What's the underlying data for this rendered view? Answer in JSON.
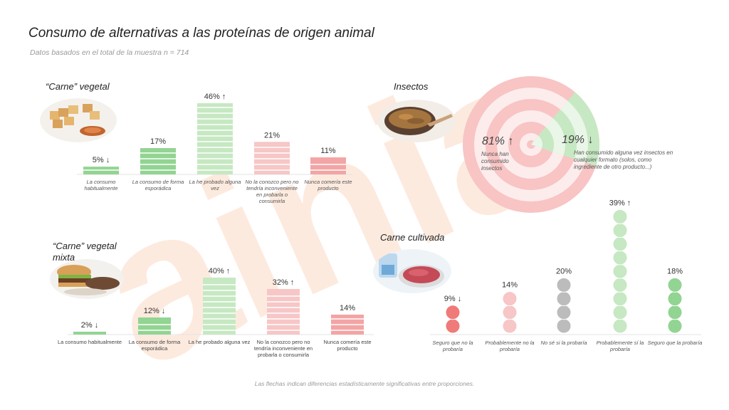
{
  "title": "Consumo de alternativas a las proteínas de origen animal",
  "subtitle": "Datos basados en el total de la muestra n = 714",
  "footnote": "Las flechas indican diferencias estadísticamente significativas entre proporciones.",
  "watermark": "ainia",
  "colors": {
    "green": "#92d492",
    "green_light": "#c6e8c2",
    "pink": "#f3a4a4",
    "pink_light": "#f7c6c6",
    "red": "#f07a7a",
    "grey": "#bcbcbc",
    "watermark": "#fde3d3"
  },
  "icons": [
    "tofu-skewer-photo",
    "burger-photo",
    "mealworm-bowl-photo",
    "cultured-meat-petri-photo"
  ],
  "chart_data": [
    {
      "id": "carne-vegetal",
      "type": "bar",
      "title": "“Carne” vegetal",
      "categories": [
        "La consumo habitualmente",
        "La consumo de forma esporádica",
        "La he probado alguna vez",
        "No la conozco pero no tendría inconveniente en probarla o consumirla",
        "Nunca comería este producto"
      ],
      "values": [
        5,
        17,
        46,
        21,
        11
      ],
      "value_labels": [
        "5% ↓",
        "17%",
        "46% ↑",
        "21%",
        "11%"
      ],
      "colors": [
        "#92d492",
        "#92d492",
        "#c6e8c2",
        "#f7c6c6",
        "#f3a4a4"
      ],
      "ylim": [
        0,
        46
      ]
    },
    {
      "id": "carne-vegetal-mixta",
      "type": "bar",
      "title": "“Carne” vegetal mixta",
      "categories": [
        "La consumo habitualmente",
        "La consumo de forma esporádica",
        "La he probado alguna vez",
        "No la conozco pero no tendría inconveniente en probarla o consumirla",
        "Nunca comería este producto"
      ],
      "values": [
        2,
        12,
        40,
        32,
        14
      ],
      "value_labels": [
        "2% ↓",
        "12% ↓",
        "40% ↑",
        "32% ↑",
        "14%"
      ],
      "colors": [
        "#92d492",
        "#92d492",
        "#c6e8c2",
        "#f7c6c6",
        "#f3a4a4"
      ],
      "ylim": [
        0,
        40
      ]
    },
    {
      "id": "insectos",
      "type": "pie",
      "title": "Insectos",
      "categories": [
        "Nunca han consumido insectos",
        "Han consumido alguna vez insectos en cualquier formato (solos, como ingrediente de otro producto...)"
      ],
      "values": [
        81,
        19
      ],
      "value_labels": [
        "81% ↑",
        "19% ↓"
      ],
      "colors": [
        "#f6b7b7",
        "#c6e8c2"
      ]
    },
    {
      "id": "carne-cultivada",
      "type": "bar",
      "title": "Carne cultivada",
      "categories": [
        "Seguro que no la probaría",
        "Probablemente no la probaría",
        "No sé si la probaría",
        "Probablemente sí la probaría",
        "Seguro que la probaría"
      ],
      "values": [
        9,
        14,
        20,
        39,
        18
      ],
      "value_labels": [
        "9% ↓",
        "14%",
        "20%",
        "39% ↑",
        "18%"
      ],
      "colors": [
        "#f07a7a",
        "#f7c6c6",
        "#bcbcbc",
        "#c6e8c2",
        "#92d492"
      ],
      "ylim": [
        0,
        39
      ]
    }
  ]
}
